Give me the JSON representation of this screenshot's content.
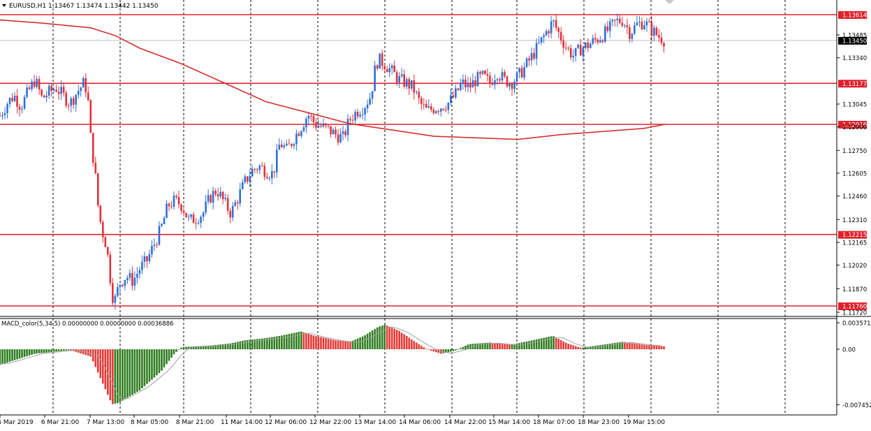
{
  "header": {
    "symbol_line": "EURUSD,H1  1.13467 1.13474 1.13442 1.13450"
  },
  "indicator": {
    "label": "MACD_color(5,34,5) 0.00000000 0.00000000 0.00036886",
    "ticks": [
      "0.0035712",
      "0.00",
      "-0.007452"
    ]
  },
  "colors": {
    "bull": "#2f6fd6",
    "bear": "#e0303a",
    "level": "#e0202a",
    "ma": "#d32f2f",
    "macd_pos": "#2e7d1f",
    "macd_neg": "#e53935",
    "signal": "#9e9e9e",
    "grid": "#000000"
  },
  "chart_data": {
    "type": "candlestick",
    "timeframe": "H1",
    "ylim": [
      1.1172,
      1.1366
    ],
    "price_ticks": [
      {
        "value": 1.13614,
        "label": "1.13614",
        "highlight": true
      },
      {
        "value": 1.13485,
        "label": "1.13485"
      },
      {
        "value": 1.1345,
        "label": "1.13450",
        "current": true
      },
      {
        "value": 1.1334,
        "label": "1.13340"
      },
      {
        "value": 1.13177,
        "label": "1.13177",
        "highlight": true
      },
      {
        "value": 1.13045,
        "label": "1.13045"
      },
      {
        "value": 1.12916,
        "label": "1.12916",
        "highlight": true
      },
      {
        "value": 1.129,
        "label": "1.12900"
      },
      {
        "value": 1.1275,
        "label": "1.12750"
      },
      {
        "value": 1.12605,
        "label": "1.12605"
      },
      {
        "value": 1.1246,
        "label": "1.12460"
      },
      {
        "value": 1.1231,
        "label": "1.12310"
      },
      {
        "value": 1.12215,
        "label": "1.12215",
        "highlight": true
      },
      {
        "value": 1.12165,
        "label": "1.12165"
      },
      {
        "value": 1.1202,
        "label": "1.12020"
      },
      {
        "value": 1.1187,
        "label": "1.11870"
      },
      {
        "value": 1.1176,
        "label": "1.11760",
        "highlight": true
      },
      {
        "value": 1.1172,
        "label": "1.11720"
      }
    ],
    "levels": [
      1.13614,
      1.13177,
      1.12916,
      1.12215,
      1.1176
    ],
    "x_labels": [
      "6 Mar 2019",
      "6 Mar 21:00",
      "7 Mar 13:00",
      "8 Mar 05:00",
      "8 Mar 21:00",
      "11 Mar 14:00",
      "12 Mar 06:00",
      "12 Mar 22:00",
      "13 Mar 14:00",
      "14 Mar 06:00",
      "14 Mar 22:00",
      "15 Mar 14:00",
      "18 Mar 07:00",
      "18 Mar 23:00",
      "19 Mar 15:00"
    ],
    "close_path": [
      [
        0,
        1.1297
      ],
      [
        10,
        1.1305
      ],
      [
        20,
        1.131
      ],
      [
        30,
        1.1303
      ],
      [
        40,
        1.1312
      ],
      [
        50,
        1.132
      ],
      [
        60,
        1.1308
      ],
      [
        70,
        1.1312
      ],
      [
        80,
        1.1315
      ],
      [
        90,
        1.131
      ],
      [
        100,
        1.1305
      ],
      [
        110,
        1.1312
      ],
      [
        120,
        1.1318
      ],
      [
        125,
        1.1312
      ],
      [
        130,
        1.128
      ],
      [
        135,
        1.1265
      ],
      [
        140,
        1.124
      ],
      [
        145,
        1.1225
      ],
      [
        150,
        1.1218
      ],
      [
        155,
        1.1205
      ],
      [
        160,
        1.1183
      ],
      [
        165,
        1.118
      ],
      [
        170,
        1.119
      ],
      [
        180,
        1.1195
      ],
      [
        190,
        1.1192
      ],
      [
        200,
        1.12
      ],
      [
        210,
        1.1205
      ],
      [
        220,
        1.1215
      ],
      [
        230,
        1.1225
      ],
      [
        240,
        1.124
      ],
      [
        250,
        1.1243
      ],
      [
        260,
        1.124
      ],
      [
        270,
        1.123
      ],
      [
        280,
        1.1232
      ],
      [
        290,
        1.1235
      ],
      [
        300,
        1.1245
      ],
      [
        310,
        1.125
      ],
      [
        320,
        1.1242
      ],
      [
        330,
        1.1235
      ],
      [
        340,
        1.1245
      ],
      [
        350,
        1.1255
      ],
      [
        360,
        1.1262
      ],
      [
        370,
        1.1265
      ],
      [
        380,
        1.1262
      ],
      [
        390,
        1.126
      ],
      [
        400,
        1.128
      ],
      [
        410,
        1.1275
      ],
      [
        420,
        1.1283
      ],
      [
        430,
        1.129
      ],
      [
        440,
        1.1298
      ],
      [
        450,
        1.1292
      ],
      [
        460,
        1.129
      ],
      [
        470,
        1.1288
      ],
      [
        480,
        1.1285
      ],
      [
        490,
        1.1283
      ],
      [
        500,
        1.1295
      ],
      [
        510,
        1.13
      ],
      [
        520,
        1.1303
      ],
      [
        530,
        1.131
      ],
      [
        535,
        1.1325
      ],
      [
        540,
        1.1333
      ],
      [
        550,
        1.133
      ],
      [
        560,
        1.1325
      ],
      [
        570,
        1.132
      ],
      [
        580,
        1.1318
      ],
      [
        590,
        1.1315
      ],
      [
        600,
        1.1305
      ],
      [
        610,
        1.13
      ],
      [
        620,
        1.1302
      ],
      [
        630,
        1.1303
      ],
      [
        640,
        1.1305
      ],
      [
        650,
        1.131
      ],
      [
        660,
        1.1318
      ],
      [
        670,
        1.1315
      ],
      [
        680,
        1.132
      ],
      [
        690,
        1.1322
      ],
      [
        700,
        1.1318
      ],
      [
        710,
        1.1325
      ],
      [
        720,
        1.132
      ],
      [
        730,
        1.1318
      ],
      [
        740,
        1.1322
      ],
      [
        750,
        1.1328
      ],
      [
        760,
        1.1335
      ],
      [
        770,
        1.1342
      ],
      [
        780,
        1.135
      ],
      [
        790,
        1.1357
      ],
      [
        800,
        1.1348
      ],
      [
        810,
        1.134
      ],
      [
        820,
        1.1335
      ],
      [
        830,
        1.134
      ],
      [
        840,
        1.1342
      ],
      [
        850,
        1.1345
      ],
      [
        860,
        1.1348
      ],
      [
        870,
        1.1352
      ],
      [
        880,
        1.1357
      ],
      [
        890,
        1.1358
      ],
      [
        900,
        1.135
      ],
      [
        910,
        1.1355
      ],
      [
        920,
        1.1357
      ],
      [
        930,
        1.1352
      ],
      [
        940,
        1.1348
      ],
      [
        950,
        1.1345
      ]
    ],
    "ma_path": [
      [
        0,
        1.1358
      ],
      [
        60,
        1.1356
      ],
      [
        130,
        1.1353
      ],
      [
        165,
        1.1348
      ],
      [
        200,
        1.134
      ],
      [
        260,
        1.133
      ],
      [
        320,
        1.1318
      ],
      [
        380,
        1.1306
      ],
      [
        440,
        1.1299
      ],
      [
        500,
        1.1292
      ],
      [
        560,
        1.1288
      ],
      [
        620,
        1.1284
      ],
      [
        680,
        1.1283
      ],
      [
        740,
        1.1282
      ],
      [
        800,
        1.1285
      ],
      [
        860,
        1.1287
      ],
      [
        920,
        1.1289
      ],
      [
        950,
        1.12916
      ]
    ],
    "macd_path": [
      [
        0,
        -0.0021
      ],
      [
        50,
        -0.0006
      ],
      [
        100,
        -0.0001
      ],
      [
        130,
        -0.001
      ],
      [
        145,
        -0.0042
      ],
      [
        160,
        -0.0074
      ],
      [
        170,
        -0.0072
      ],
      [
        200,
        -0.0055
      ],
      [
        230,
        -0.003
      ],
      [
        250,
        -0.0005
      ],
      [
        260,
        0.0003
      ],
      [
        300,
        0.0005
      ],
      [
        330,
        0.0008
      ],
      [
        350,
        0.0012
      ],
      [
        380,
        0.0015
      ],
      [
        400,
        0.0018
      ],
      [
        430,
        0.0024
      ],
      [
        450,
        0.0018
      ],
      [
        480,
        0.0012
      ],
      [
        500,
        0.001
      ],
      [
        520,
        0.0018
      ],
      [
        540,
        0.003
      ],
      [
        550,
        0.0033
      ],
      [
        570,
        0.0025
      ],
      [
        590,
        0.0012
      ],
      [
        610,
        0.0
      ],
      [
        630,
        -0.0006
      ],
      [
        650,
        -0.0002
      ],
      [
        670,
        0.0007
      ],
      [
        700,
        0.0009
      ],
      [
        730,
        0.0006
      ],
      [
        760,
        0.0012
      ],
      [
        790,
        0.0018
      ],
      [
        810,
        0.0008
      ],
      [
        830,
        0.0002
      ],
      [
        860,
        0.0006
      ],
      [
        890,
        0.001
      ],
      [
        920,
        0.0006
      ],
      [
        950,
        0.0004
      ]
    ]
  }
}
